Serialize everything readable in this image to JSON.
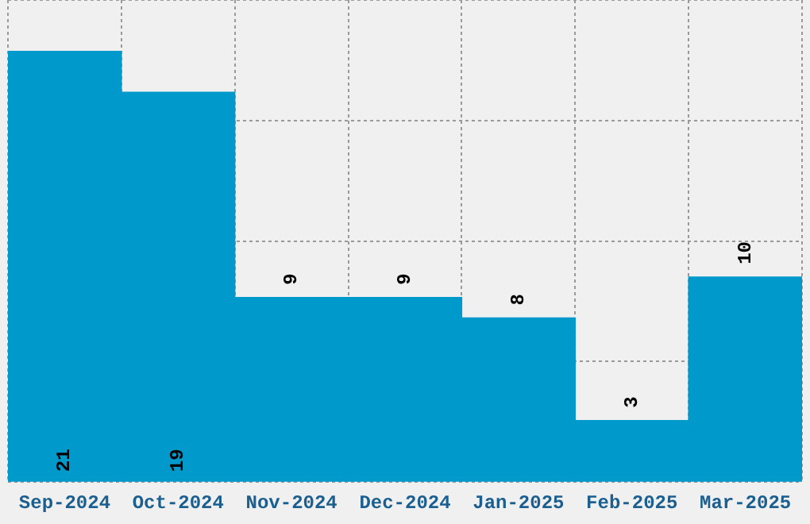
{
  "chart_data": {
    "type": "bar",
    "categories": [
      "Sep-2024",
      "Oct-2024",
      "Nov-2024",
      "Dec-2024",
      "Jan-2025",
      "Feb-2025",
      "Mar-2025"
    ],
    "values": [
      21,
      19,
      9,
      9,
      8,
      3,
      10
    ],
    "color": "#0099cc",
    "ylim": [
      0,
      23.5
    ],
    "yticks": [
      {
        "value": 0,
        "label": null
      },
      {
        "value": 5.875,
        "label": null
      },
      {
        "value": 11.75,
        "label": null
      },
      {
        "value": 17.625,
        "label": null
      },
      {
        "value": 23.5,
        "label": null
      }
    ],
    "grid": true,
    "legend": false,
    "data_labels": true
  }
}
